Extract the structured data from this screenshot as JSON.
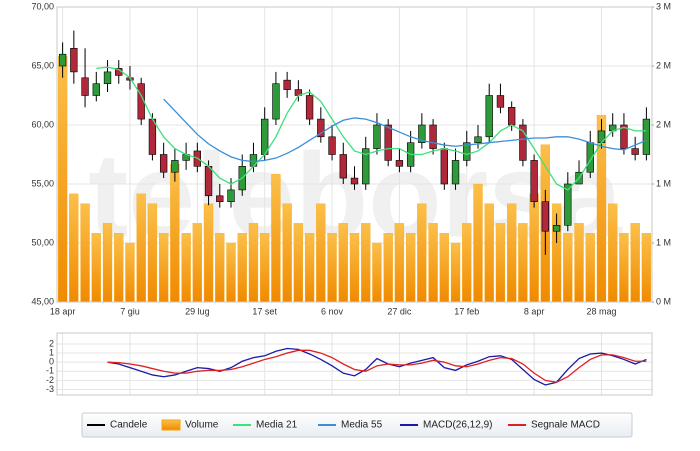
{
  "watermark": "teleborsa",
  "chart_data": [
    {
      "type": "candlestick",
      "categories": [
        "18 apr",
        null,
        null,
        null,
        null,
        null,
        "7 giu",
        null,
        null,
        null,
        null,
        null,
        "29 lug",
        null,
        null,
        null,
        null,
        null,
        "17 set",
        null,
        null,
        null,
        null,
        null,
        "6 nov",
        null,
        null,
        null,
        null,
        null,
        "27 dic",
        null,
        null,
        null,
        null,
        null,
        "17 feb",
        null,
        null,
        null,
        null,
        null,
        "8 apr",
        null,
        null,
        null,
        null,
        null,
        "28 mag",
        null,
        null,
        null,
        null
      ],
      "ylim": [
        45,
        70
      ],
      "yticks": [
        {
          "value": 45,
          "label": "45,00"
        },
        {
          "value": 50,
          "label": "50,00"
        },
        {
          "value": 55,
          "label": "55,00"
        },
        {
          "value": 60,
          "label": "60,00"
        },
        {
          "value": 65,
          "label": "65,00"
        },
        {
          "value": 70,
          "label": "70,00"
        }
      ],
      "y2lim": [
        0,
        3
      ],
      "y2ticks": [
        {
          "value": 0,
          "label": "0 M"
        },
        {
          "value": 0.6,
          "label": "1 M"
        },
        {
          "value": 1.2,
          "label": "1 M"
        },
        {
          "value": 1.8,
          "label": "2 M"
        },
        {
          "value": 2.4,
          "label": "2 M"
        },
        {
          "value": 3,
          "label": "3 M"
        }
      ],
      "grid": true,
      "up_color": "#2e9a3a",
      "down_color": "#b0283a",
      "series": [
        {
          "name": "Candele",
          "color": "#000000",
          "open": [
            65,
            66.5,
            64,
            62.5,
            63.5,
            64.8,
            64,
            63.5,
            60.5,
            57.5,
            56,
            57,
            57.8,
            56.5,
            54,
            53.5,
            54.5,
            56.5,
            57.5,
            60.5,
            63.8,
            63,
            62.5,
            60.5,
            59,
            57.5,
            55.5,
            55,
            58,
            60,
            57,
            56.5,
            58.5,
            60,
            58,
            55,
            57,
            58.5,
            59,
            62.5,
            61.5,
            60,
            57,
            53.5,
            51,
            51.5,
            55,
            56,
            58.5,
            59.5,
            60,
            58,
            57.5
          ],
          "high": [
            67,
            68,
            66.5,
            64.5,
            65.5,
            65.5,
            65,
            64,
            61,
            58.5,
            58,
            58.5,
            58.5,
            57,
            55,
            55.5,
            57.5,
            58.5,
            61.5,
            64.5,
            64.5,
            63.8,
            63,
            61.5,
            60,
            58.5,
            56.5,
            59,
            61,
            60.5,
            58,
            59.5,
            61,
            60.5,
            58.5,
            58,
            59.5,
            60,
            63.5,
            63.5,
            62,
            60.5,
            57.5,
            54.5,
            52.5,
            56,
            57,
            59.5,
            60.5,
            61,
            61,
            59,
            61.5
          ],
          "low": [
            64,
            63.5,
            61.5,
            62,
            62.8,
            63.5,
            63,
            60,
            57,
            55.5,
            55.2,
            56.2,
            56,
            53.2,
            53,
            53,
            54,
            56,
            57,
            60,
            62.3,
            62,
            60,
            58.5,
            57,
            55,
            54.5,
            54.5,
            57.5,
            56.5,
            56,
            56,
            58,
            57.5,
            54.5,
            54.5,
            56.5,
            58,
            58.5,
            61,
            59.5,
            56.5,
            53,
            49,
            50,
            51,
            55,
            55.5,
            58,
            59,
            57.5,
            57,
            57
          ],
          "close": [
            66,
            64.5,
            62.5,
            63.5,
            64.5,
            64.2,
            63.8,
            60.5,
            57.5,
            56,
            57,
            57.5,
            56.5,
            54,
            53.5,
            54.5,
            56.5,
            57.5,
            60.5,
            63.5,
            63,
            62.5,
            60.5,
            59,
            57.5,
            55.5,
            55,
            58,
            60,
            57,
            56.5,
            58.5,
            60,
            58,
            55,
            57,
            58.5,
            59,
            62.5,
            61.5,
            60,
            57,
            53.5,
            51,
            51.5,
            55,
            56,
            58.5,
            59.5,
            60,
            58,
            57.5,
            60.5
          ]
        },
        {
          "name": "Volume",
          "color": "#f7a30a",
          "axis": "y2",
          "values": [
            2.5,
            1.1,
            1,
            0.7,
            0.8,
            0.7,
            0.6,
            1.1,
            1,
            0.7,
            1.4,
            0.7,
            0.8,
            1,
            0.7,
            0.6,
            0.7,
            0.8,
            0.7,
            1.3,
            1,
            0.8,
            0.7,
            1,
            0.7,
            0.8,
            0.7,
            0.8,
            0.6,
            0.7,
            0.8,
            0.7,
            1,
            0.8,
            0.7,
            0.6,
            0.8,
            1.2,
            1,
            0.8,
            1,
            0.8,
            1.1,
            1.6,
            1,
            0.7,
            0.8,
            0.7,
            1.9,
            1,
            0.7,
            0.8,
            0.7
          ]
        },
        {
          "name": "Media 21",
          "color": "#3ee07a",
          "values": [
            null,
            null,
            null,
            64.8,
            64.9,
            64.7,
            64,
            62.5,
            60.5,
            59,
            58,
            57.5,
            57.2,
            56.5,
            55.5,
            55,
            55.5,
            56.5,
            57.5,
            59,
            61,
            62.5,
            62.8,
            62,
            60.5,
            59,
            57.8,
            57.5,
            57.8,
            58,
            58,
            57.5,
            57.5,
            57.8,
            58,
            57.8,
            57.5,
            57.8,
            58.5,
            59.5,
            60,
            59.5,
            58,
            56.5,
            55,
            54.5,
            55.5,
            57,
            58.5,
            59.5,
            59.8,
            59.5,
            59.5
          ]
        },
        {
          "name": "Media 55",
          "color": "#3a8fd8",
          "values": [
            null,
            null,
            null,
            null,
            null,
            null,
            null,
            null,
            null,
            62.2,
            61.2,
            60.2,
            59.2,
            58.4,
            57.8,
            57.3,
            57,
            56.9,
            57,
            57.2,
            57.6,
            58.1,
            58.7,
            59.3,
            59.9,
            60.4,
            60.6,
            60.5,
            60.2,
            59.8,
            59.4,
            59,
            58.7,
            58.5,
            58.3,
            58.2,
            58.3,
            58.4,
            58.5,
            58.6,
            58.7,
            58.8,
            58.9,
            58.9,
            59,
            59,
            58.8,
            58.5,
            58.2,
            58,
            57.9,
            58.3,
            58.7
          ]
        }
      ]
    },
    {
      "type": "line",
      "ylim": [
        -3.6,
        3.2
      ],
      "yticks": [
        2,
        1,
        0,
        -1,
        -2,
        -3
      ],
      "grid": true,
      "series": [
        {
          "name": "MACD(26,12,9)",
          "color": "#1a1aa8",
          "values": [
            null,
            null,
            null,
            null,
            0,
            -0.2,
            -0.6,
            -1,
            -1.4,
            -1.6,
            -1.4,
            -1,
            -0.6,
            -0.7,
            -1,
            -0.6,
            0.1,
            0.5,
            0.7,
            1.2,
            1.5,
            1.4,
            0.9,
            0.3,
            -0.4,
            -1.2,
            -1.5,
            -0.8,
            0.4,
            -0.2,
            -0.5,
            -0.1,
            0.2,
            0.5,
            -0.6,
            -0.9,
            -0.3,
            0.1,
            0.6,
            0.7,
            0.3,
            -0.8,
            -1.9,
            -2.5,
            -2.2,
            -0.8,
            0.4,
            0.9,
            1,
            0.7,
            0.3,
            -0.2,
            0.3
          ]
        },
        {
          "name": "Segnale MACD",
          "color": "#e02020",
          "values": [
            null,
            null,
            null,
            null,
            0,
            -0.05,
            -0.2,
            -0.4,
            -0.7,
            -1,
            -1.2,
            -1.2,
            -1,
            -0.9,
            -0.9,
            -0.8,
            -0.5,
            -0.1,
            0.3,
            0.6,
            1,
            1.3,
            1.3,
            1,
            0.5,
            -0.2,
            -0.8,
            -1,
            -0.4,
            -0.2,
            -0.3,
            -0.3,
            -0.1,
            0.2,
            0,
            -0.4,
            -0.5,
            -0.2,
            0.2,
            0.5,
            0.4,
            -0.2,
            -1.2,
            -2,
            -2.2,
            -1.6,
            -0.6,
            0.3,
            0.8,
            0.8,
            0.5,
            0.1,
            0.1
          ]
        }
      ]
    }
  ]
}
